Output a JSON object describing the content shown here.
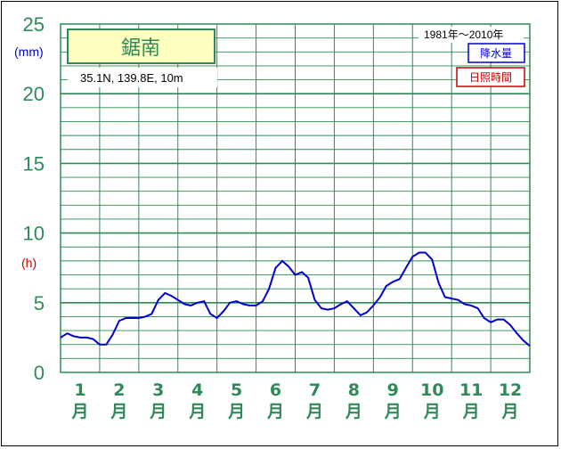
{
  "chart_data": {
    "type": "line",
    "title": "鋸南",
    "location": "35.1N,  139.8E,  10m",
    "period": "1981年〜2010年",
    "legend": {
      "precipitation": "降水量",
      "sunshine": "日照時間",
      "precipitation_color": "#0000cc",
      "sunshine_color": "#cc0000"
    },
    "y_units": {
      "precipitation": "(mm)",
      "sunshine": "(h)"
    },
    "ylim": [
      0,
      25
    ],
    "yticks": [
      "0",
      "5",
      "10",
      "15",
      "20",
      "25"
    ],
    "months": [
      {
        "num": "1",
        "unit": "月"
      },
      {
        "num": "2",
        "unit": "月"
      },
      {
        "num": "3",
        "unit": "月"
      },
      {
        "num": "4",
        "unit": "月"
      },
      {
        "num": "5",
        "unit": "月"
      },
      {
        "num": "6",
        "unit": "月"
      },
      {
        "num": "7",
        "unit": "月"
      },
      {
        "num": "8",
        "unit": "月"
      },
      {
        "num": "9",
        "unit": "月"
      },
      {
        "num": "10",
        "unit": "月"
      },
      {
        "num": "11",
        "unit": "月"
      },
      {
        "num": "12",
        "unit": "月"
      }
    ],
    "grid": true,
    "series": [
      {
        "key": "precipitation",
        "color": "#0000cc",
        "x": [
          0.0,
          0.17,
          0.33,
          0.5,
          0.67,
          0.83,
          1.0,
          1.17,
          1.33,
          1.5,
          1.67,
          1.83,
          2.0,
          2.17,
          2.33,
          2.5,
          2.67,
          2.83,
          3.0,
          3.17,
          3.33,
          3.5,
          3.67,
          3.83,
          4.0,
          4.17,
          4.33,
          4.5,
          4.67,
          4.83,
          5.0,
          5.17,
          5.33,
          5.5,
          5.67,
          5.83,
          6.0,
          6.17,
          6.33,
          6.5,
          6.67,
          6.83,
          7.0,
          7.17,
          7.33,
          7.5,
          7.67,
          7.83,
          8.0,
          8.17,
          8.33,
          8.5,
          8.67,
          8.83,
          9.0,
          9.17,
          9.33,
          9.5,
          9.67,
          9.83,
          10.0,
          10.17,
          10.33,
          10.5,
          10.67,
          10.83,
          11.0,
          11.17,
          11.33,
          11.5,
          11.67,
          11.83,
          12.0
        ],
        "values": [
          2.5,
          2.8,
          2.6,
          2.5,
          2.5,
          2.4,
          2.0,
          2.0,
          2.7,
          3.7,
          3.9,
          3.9,
          3.9,
          4.0,
          4.2,
          5.2,
          5.7,
          5.5,
          5.2,
          4.9,
          4.8,
          5.0,
          5.1,
          4.2,
          3.9,
          4.4,
          5.0,
          5.1,
          4.9,
          4.8,
          4.8,
          5.1,
          6.0,
          7.5,
          8.0,
          7.6,
          7.0,
          7.2,
          6.8,
          5.2,
          4.6,
          4.5,
          4.6,
          4.9,
          5.1,
          4.6,
          4.1,
          4.3,
          4.8,
          5.4,
          6.2,
          6.5,
          6.7,
          7.5,
          8.3,
          8.6,
          8.6,
          8.1,
          6.4,
          5.4,
          5.3,
          5.2,
          4.9,
          4.8,
          4.6,
          3.9,
          3.6,
          3.8,
          3.8,
          3.4,
          2.8,
          2.3,
          1.9
        ]
      }
    ]
  }
}
